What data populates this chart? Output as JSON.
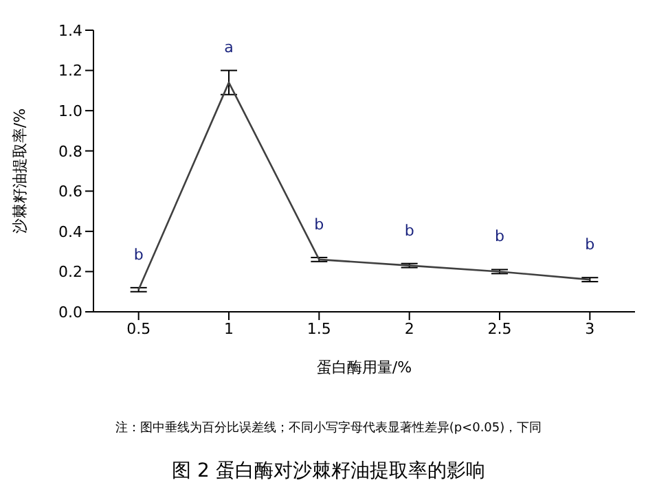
{
  "chart_data": {
    "type": "line",
    "title": "图 2 蛋白酶对沙棘籽油提取率的影响",
    "xlabel": "蛋白酶用量/%",
    "ylabel": "沙棘籽油提取率/%",
    "categories": [
      "0.5",
      "1",
      "1.5",
      "2",
      "2.5",
      "3"
    ],
    "series": [
      {
        "color": "#404040",
        "values": [
          0.11,
          1.14,
          0.26,
          0.23,
          0.2,
          0.16
        ],
        "errors": [
          0.01,
          0.06,
          0.01,
          0.01,
          0.01,
          0.01
        ]
      }
    ],
    "ylim": [
      0,
      1.4
    ],
    "yticks": [
      {
        "value": 0,
        "label": "0.0"
      },
      0.2,
      0.4,
      0.6,
      0.8,
      {
        "value": 1,
        "label": "1.0"
      },
      1.2,
      1.4
    ],
    "grid": false,
    "legend": false,
    "marker": "none",
    "line_style": "solid",
    "annotations": [
      {
        "text": "b",
        "x": "0.5",
        "y": 0.11
      },
      {
        "text": "a",
        "x": "1",
        "y": 1.14
      },
      {
        "text": "b",
        "x": "1.5",
        "y": 0.26
      },
      {
        "text": "b",
        "x": "2",
        "y": 0.23
      },
      {
        "text": "b",
        "x": "2.5",
        "y": 0.2
      },
      {
        "text": "b",
        "x": "3",
        "y": 0.16
      },
      "注：图中垂线为百分比误差线；不同小写字母代表显著性差异(p<0.05)，下同"
    ]
  }
}
